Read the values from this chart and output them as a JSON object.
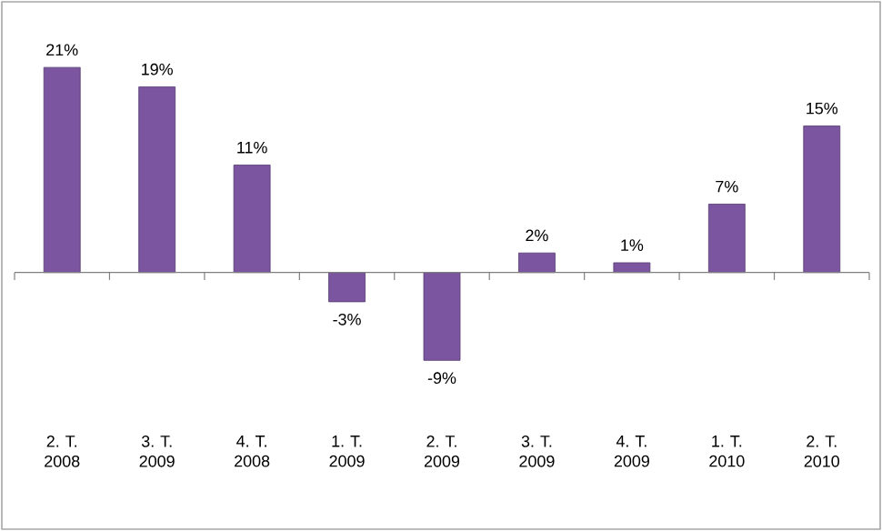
{
  "chart_data": {
    "type": "bar",
    "categories": [
      "2. T. 2008",
      "3. T. 2009",
      "4. T. 2008",
      "1. T. 2009",
      "2. T. 2009",
      "3. T. 2009",
      "4. T. 2009",
      "1. T. 2010",
      "2. T. 2010"
    ],
    "values": [
      21,
      19,
      11,
      -3,
      -9,
      2,
      1,
      7,
      15
    ],
    "value_labels": [
      "21%",
      "19%",
      "11%",
      "-3%",
      "-9%",
      "2%",
      "1%",
      "7%",
      "15%"
    ],
    "color": "#7b559f"
  }
}
